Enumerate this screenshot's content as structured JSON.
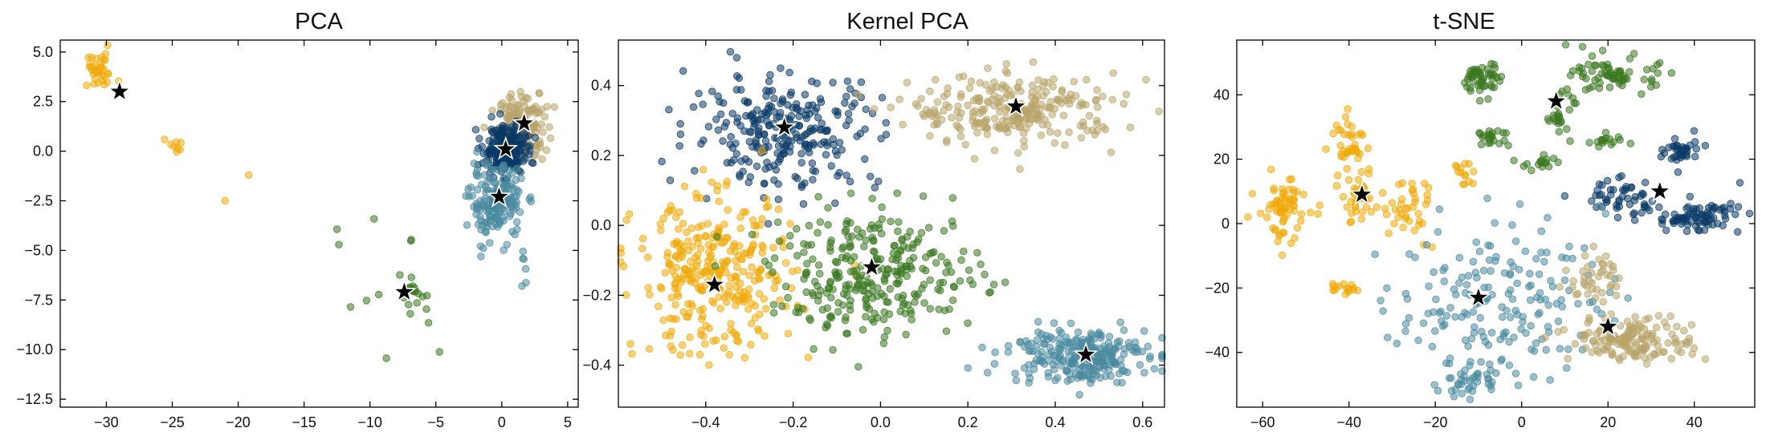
{
  "chart_data": [
    {
      "type": "scatter",
      "title": "PCA",
      "xlim": [
        -33.5,
        5.8
      ],
      "ylim": [
        -12.9,
        5.6
      ],
      "xticks": [
        -30,
        -25,
        -20,
        -15,
        -10,
        -5,
        0,
        5
      ],
      "xtick_labels": [
        "−30",
        "−25",
        "−20",
        "−15",
        "−10",
        "−5",
        "0",
        "5"
      ],
      "yticks": [
        -12.5,
        -10.0,
        -7.5,
        -5.0,
        -2.5,
        0.0,
        2.5,
        5.0
      ],
      "ytick_labels": [
        "−12.5",
        "−10.0",
        "−7.5",
        "−5.0",
        "−2.5",
        "0.0",
        "2.5",
        "5.0"
      ],
      "clusters": [
        {
          "color": "#f0aa0a",
          "n": 36,
          "x": -30.6,
          "y": 4.0,
          "sx": 0.7,
          "sy": 0.45
        },
        {
          "color": "#f0aa0a",
          "n": 8,
          "x": -24.5,
          "y": 0.3,
          "sx": 0.6,
          "sy": 0.2
        },
        {
          "color": "#f0aa0a",
          "n": 1,
          "x": -21.0,
          "y": -2.5,
          "sx": 0.0,
          "sy": 0.0
        },
        {
          "color": "#f0aa0a",
          "n": 1,
          "x": -19.2,
          "y": -1.2,
          "sx": 0.0,
          "sy": 0.0
        },
        {
          "color": "#b8a46a",
          "n": 170,
          "x": 1.6,
          "y": 1.3,
          "sx": 0.9,
          "sy": 0.8
        },
        {
          "color": "#0a3a66",
          "n": 230,
          "x": 0.2,
          "y": 0.1,
          "sx": 0.8,
          "sy": 0.6
        },
        {
          "color": "#4a8aa0",
          "n": 180,
          "x": -0.4,
          "y": -2.6,
          "sx": 1.0,
          "sy": 0.9
        },
        {
          "color": "#4a8aa0",
          "n": 6,
          "x": 1.5,
          "y": -5.8,
          "sx": 1.8,
          "sy": 1.0
        },
        {
          "color": "#3a7820",
          "n": 16,
          "x": -6.6,
          "y": -7.2,
          "sx": 0.45,
          "sy": 0.3
        },
        {
          "color": "#3a7820",
          "n": 14,
          "x": -10.2,
          "y": -7.5,
          "sx": 2.6,
          "sy": 2.2
        }
      ],
      "centroids": [
        {
          "x": -29.0,
          "y": 3.0
        },
        {
          "x": 1.7,
          "y": 1.4
        },
        {
          "x": 0.3,
          "y": 0.1
        },
        {
          "x": -0.2,
          "y": -2.3
        },
        {
          "x": -7.4,
          "y": -7.1
        }
      ]
    },
    {
      "type": "scatter",
      "title": "Kernel PCA",
      "xlim": [
        -0.6,
        0.65
      ],
      "ylim": [
        -0.52,
        0.53
      ],
      "xticks": [
        -0.4,
        -0.2,
        0.0,
        0.2,
        0.4,
        0.6
      ],
      "xtick_labels": [
        "−0.4",
        "−0.2",
        "0.0",
        "0.2",
        "0.4",
        "0.6"
      ],
      "yticks": [
        -0.4,
        -0.2,
        0.0,
        0.2,
        0.4
      ],
      "ytick_labels": [
        "−0.4",
        "−0.2",
        "0.0",
        "0.2",
        "0.4"
      ],
      "clusters": [
        {
          "color": "#0a3a66",
          "n": 260,
          "x": -0.22,
          "y": 0.27,
          "sx": 0.11,
          "sy": 0.08
        },
        {
          "color": "#b8a46a",
          "n": 260,
          "x": 0.31,
          "y": 0.33,
          "sx": 0.12,
          "sy": 0.05
        },
        {
          "color": "#f0aa0a",
          "n": 320,
          "x": -0.38,
          "y": -0.15,
          "sx": 0.09,
          "sy": 0.11
        },
        {
          "color": "#3a7820",
          "n": 300,
          "x": -0.01,
          "y": -0.14,
          "sx": 0.12,
          "sy": 0.09
        },
        {
          "color": "#4a8aa0",
          "n": 260,
          "x": 0.45,
          "y": -0.37,
          "sx": 0.08,
          "sy": 0.04
        }
      ],
      "centroids": [
        {
          "x": -0.22,
          "y": 0.28
        },
        {
          "x": 0.31,
          "y": 0.34
        },
        {
          "x": -0.38,
          "y": -0.17
        },
        {
          "x": -0.02,
          "y": -0.12
        },
        {
          "x": 0.47,
          "y": -0.37
        }
      ]
    },
    {
      "type": "scatter",
      "title": "t-SNE",
      "xlim": [
        -66,
        54
      ],
      "ylim": [
        -57,
        57
      ],
      "xticks": [
        -60,
        -40,
        -20,
        0,
        20,
        40
      ],
      "xtick_labels": [
        "−60",
        "−40",
        "−20",
        "0",
        "20",
        "40"
      ],
      "yticks": [
        -40,
        -20,
        0,
        20,
        40
      ],
      "ytick_labels": [
        "−40",
        "−20",
        "0",
        "20",
        "40"
      ],
      "clusters": [
        {
          "color": "#3a7820",
          "n": 50,
          "x": -9,
          "y": 45,
          "sx": 2.0,
          "sy": 2.5
        },
        {
          "color": "#3a7820",
          "n": 70,
          "x": 22,
          "y": 46,
          "sx": 5.0,
          "sy": 3.0
        },
        {
          "color": "#3a7820",
          "n": 24,
          "x": 9,
          "y": 34,
          "sx": 1.5,
          "sy": 3.0
        },
        {
          "color": "#3a7820",
          "n": 16,
          "x": 20,
          "y": 26,
          "sx": 2.5,
          "sy": 1.0
        },
        {
          "color": "#3a7820",
          "n": 22,
          "x": -7,
          "y": 27,
          "sx": 2.0,
          "sy": 1.5
        },
        {
          "color": "#3a7820",
          "n": 16,
          "x": 4,
          "y": 19,
          "sx": 2.5,
          "sy": 1.0
        },
        {
          "color": "#0a3a66",
          "n": 36,
          "x": 37,
          "y": 22,
          "sx": 2.0,
          "sy": 2.5
        },
        {
          "color": "#0a3a66",
          "n": 50,
          "x": 22,
          "y": 8,
          "sx": 5.0,
          "sy": 3.0
        },
        {
          "color": "#0a3a66",
          "n": 80,
          "x": 41,
          "y": 2,
          "sx": 5.0,
          "sy": 2.5
        },
        {
          "color": "#f0aa0a",
          "n": 40,
          "x": -40,
          "y": 26,
          "sx": 2.0,
          "sy": 4.0
        },
        {
          "color": "#f0aa0a",
          "n": 70,
          "x": -55,
          "y": 4,
          "sx": 3.0,
          "sy": 5.0
        },
        {
          "color": "#f0aa0a",
          "n": 30,
          "x": -38,
          "y": 7,
          "sx": 2.0,
          "sy": 3.5
        },
        {
          "color": "#f0aa0a",
          "n": 40,
          "x": -27,
          "y": 4,
          "sx": 4.0,
          "sy": 5.0
        },
        {
          "color": "#f0aa0a",
          "n": 14,
          "x": -14,
          "y": 15,
          "sx": 1.5,
          "sy": 2.0
        },
        {
          "color": "#f0aa0a",
          "n": 16,
          "x": -41,
          "y": -20,
          "sx": 1.5,
          "sy": 1.0
        },
        {
          "color": "#4a8aa0",
          "n": 180,
          "x": -5,
          "y": -23,
          "sx": 12.0,
          "sy": 12.0
        },
        {
          "color": "#4a8aa0",
          "n": 40,
          "x": -12,
          "y": -48,
          "sx": 3.5,
          "sy": 3.0
        },
        {
          "color": "#b8a46a",
          "n": 40,
          "x": 17,
          "y": -17,
          "sx": 3.0,
          "sy": 4.0
        },
        {
          "color": "#b8a46a",
          "n": 150,
          "x": 26,
          "y": -36,
          "sx": 7.0,
          "sy": 3.5
        }
      ],
      "centroids": [
        {
          "x": 8,
          "y": 38
        },
        {
          "x": 32,
          "y": 10
        },
        {
          "x": -37,
          "y": 9
        },
        {
          "x": -10,
          "y": -23
        },
        {
          "x": 20,
          "y": -32
        }
      ]
    }
  ]
}
